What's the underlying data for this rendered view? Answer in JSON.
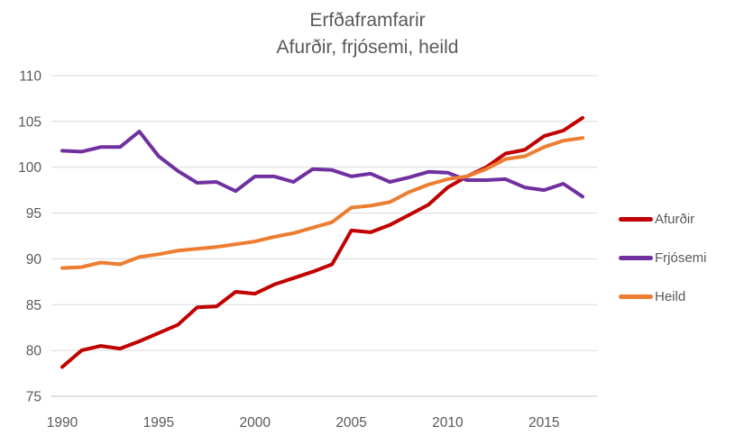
{
  "colors": {
    "background": "#FFFFFF",
    "grid": "#D9D9D9",
    "axis_line": "#BFBFBF",
    "text": "#595959"
  },
  "chart_data": {
    "type": "line",
    "title": "Erfðaframfarir",
    "subtitle": "Afurðir, frjósemi, heild",
    "x": [
      1990,
      1991,
      1992,
      1993,
      1994,
      1995,
      1996,
      1997,
      1998,
      1999,
      2000,
      2001,
      2002,
      2003,
      2004,
      2005,
      2006,
      2007,
      2008,
      2009,
      2010,
      2011,
      2012,
      2013,
      2014,
      2015,
      2016,
      2017
    ],
    "series": [
      {
        "name": "Afurðir",
        "color": "#C00000",
        "values": [
          78.2,
          80.0,
          80.5,
          80.2,
          81.0,
          81.9,
          82.8,
          84.7,
          84.8,
          86.4,
          86.2,
          87.2,
          87.9,
          88.6,
          89.4,
          93.1,
          92.9,
          93.7,
          94.8,
          95.9,
          97.8,
          99.0,
          100.0,
          101.5,
          101.9,
          103.4,
          104.0,
          105.4
        ]
      },
      {
        "name": "Frjósemi",
        "color": "#7030A0",
        "values": [
          101.8,
          101.7,
          102.2,
          102.2,
          103.9,
          101.2,
          99.6,
          98.3,
          98.4,
          97.4,
          99.0,
          99.0,
          98.4,
          99.8,
          99.7,
          99.0,
          99.3,
          98.4,
          98.9,
          99.5,
          99.4,
          98.6,
          98.6,
          98.7,
          97.8,
          97.5,
          98.2,
          96.8
        ]
      },
      {
        "name": "Heild",
        "color": "#ED7D31",
        "values": [
          89.0,
          89.1,
          89.6,
          89.4,
          90.2,
          90.5,
          90.9,
          91.1,
          91.3,
          91.6,
          91.9,
          92.4,
          92.8,
          93.4,
          94.0,
          95.6,
          95.8,
          96.2,
          97.3,
          98.1,
          98.7,
          99.0,
          99.8,
          100.9,
          101.2,
          102.2,
          102.9,
          103.2
        ]
      }
    ],
    "ylim": [
      75,
      110
    ],
    "ytick_step": 5,
    "yticks": [
      75,
      80,
      85,
      90,
      95,
      100,
      105,
      110
    ],
    "xticks": [
      1990,
      1995,
      2000,
      2005,
      2010,
      2015
    ],
    "grid": true,
    "legend_position": "right"
  }
}
